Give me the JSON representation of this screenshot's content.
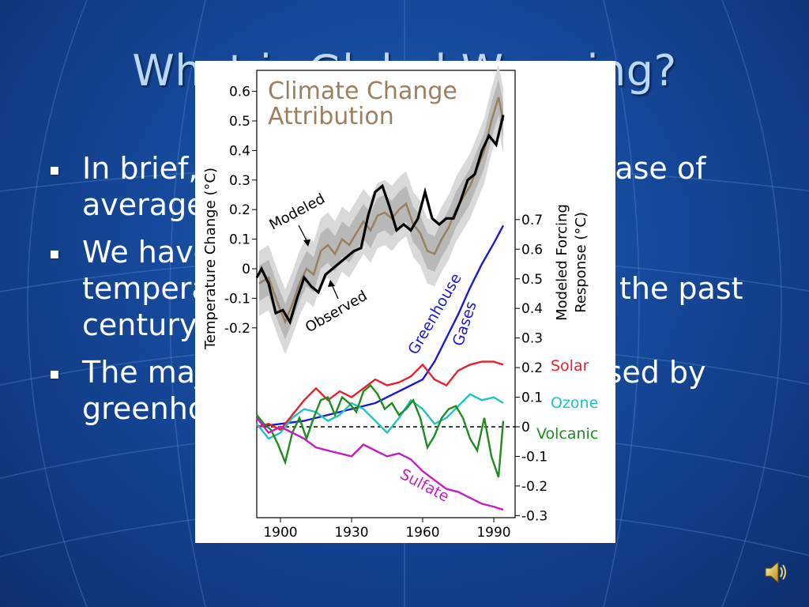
{
  "slide": {
    "title": "What is Global Warming?",
    "bullets": [
      {
        "text": "In brief, global warming is the increase of average global temperatures"
      },
      {
        "text": "We have observed an increase in temperatures of around 0.6°C over the past century"
      },
      {
        "text": "The majority of the warming is caused by greenhouse gas emissions"
      }
    ]
  },
  "icons": {
    "speaker": "speaker-icon",
    "bullet": "square-bullet-icon"
  },
  "colors": {
    "background": "#16489a",
    "title": "#b9d8f6",
    "modeled": "#9c7f5e",
    "observed": "#000000",
    "greenhouse": "#1a1ad6",
    "solar": "#e8202a",
    "ozone": "#22c2c2",
    "volcanic": "#1e8c1e",
    "sulfate": "#c21ec2"
  },
  "chart_data": {
    "type": "line",
    "title": "Climate Change Attribution",
    "xlabel": "",
    "ylabel_left": "Temperature Change (°C)",
    "ylabel_right": "Modeled Forcing Response (°C)",
    "xlim": [
      1890,
      1999
    ],
    "x_ticks": [
      "1900",
      "1930",
      "1960",
      "1990"
    ],
    "left_ticks": [
      "0.6",
      "0.5",
      "0.4",
      "0.3",
      "0.2",
      "0.1",
      "0",
      "-0.1",
      "-0.2"
    ],
    "right_ticks": [
      "0.7",
      "0.6",
      "0.5",
      "0.4",
      "0.3",
      "0.2",
      "0.1",
      "0",
      "-0.1",
      "-0.2",
      "-0.3"
    ],
    "annotations": {
      "modeled": "Modeled",
      "observed": "Observed"
    },
    "top_series": [
      {
        "name": "Modeled",
        "x": [
          1891,
          1895,
          1899,
          1902,
          1905,
          1908,
          1911,
          1914,
          1917,
          1920,
          1923,
          1926,
          1929,
          1932,
          1935,
          1938,
          1941,
          1944,
          1947,
          1950,
          1953,
          1956,
          1959,
          1962,
          1965,
          1968,
          1971,
          1974,
          1977,
          1980,
          1983,
          1986,
          1989,
          1992,
          1994
        ],
        "y": [
          -0.05,
          -0.03,
          -0.12,
          -0.18,
          -0.12,
          -0.05,
          0.0,
          -0.02,
          0.06,
          0.08,
          0.05,
          0.1,
          0.08,
          0.12,
          0.16,
          0.13,
          0.18,
          0.19,
          0.17,
          0.2,
          0.22,
          0.15,
          0.12,
          0.06,
          0.05,
          0.1,
          0.14,
          0.2,
          0.24,
          0.28,
          0.34,
          0.4,
          0.5,
          0.58,
          0.5
        ]
      },
      {
        "name": "Observed",
        "x": [
          1890,
          1892,
          1895,
          1898,
          1901,
          1904,
          1907,
          1910,
          1913,
          1916,
          1919,
          1922,
          1925,
          1928,
          1931,
          1934,
          1937,
          1940,
          1943,
          1946,
          1949,
          1952,
          1955,
          1958,
          1961,
          1964,
          1967,
          1970,
          1973,
          1976,
          1979,
          1982,
          1985,
          1988,
          1991,
          1994
        ],
        "y": [
          -0.03,
          0.0,
          -0.05,
          -0.15,
          -0.14,
          -0.18,
          -0.1,
          -0.03,
          -0.06,
          -0.08,
          -0.02,
          0.0,
          0.02,
          0.04,
          0.06,
          0.07,
          0.18,
          0.26,
          0.28,
          0.21,
          0.13,
          0.15,
          0.13,
          0.17,
          0.26,
          0.17,
          0.15,
          0.17,
          0.17,
          0.23,
          0.3,
          0.32,
          0.4,
          0.45,
          0.42,
          0.52
        ]
      }
    ],
    "bottom_series": [
      {
        "name": "Greenhouse Gases",
        "x": [
          1890,
          1900,
          1910,
          1920,
          1930,
          1940,
          1950,
          1960,
          1965,
          1970,
          1975,
          1980,
          1985,
          1990,
          1994
        ],
        "y": [
          0.0,
          0.01,
          0.02,
          0.04,
          0.06,
          0.08,
          0.12,
          0.16,
          0.22,
          0.3,
          0.38,
          0.47,
          0.55,
          0.62,
          0.68
        ]
      },
      {
        "name": "Solar",
        "x": [
          1890,
          1895,
          1900,
          1905,
          1910,
          1915,
          1920,
          1925,
          1930,
          1935,
          1940,
          1945,
          1950,
          1955,
          1960,
          1965,
          1970,
          1975,
          1980,
          1985,
          1990,
          1994
        ],
        "y": [
          0.0,
          0.01,
          -0.01,
          0.04,
          0.09,
          0.13,
          0.09,
          0.12,
          0.1,
          0.13,
          0.16,
          0.14,
          0.15,
          0.17,
          0.21,
          0.16,
          0.14,
          0.19,
          0.21,
          0.22,
          0.22,
          0.21
        ]
      },
      {
        "name": "Ozone",
        "x": [
          1890,
          1895,
          1900,
          1905,
          1910,
          1915,
          1920,
          1925,
          1930,
          1935,
          1940,
          1945,
          1950,
          1955,
          1960,
          1965,
          1970,
          1975,
          1980,
          1985,
          1990,
          1994
        ],
        "y": [
          0.01,
          -0.04,
          -0.02,
          0.03,
          0.06,
          0.05,
          0.02,
          0.04,
          0.08,
          0.06,
          0.02,
          -0.02,
          0.03,
          0.09,
          0.06,
          0.01,
          0.03,
          0.07,
          0.11,
          0.09,
          0.1,
          0.08
        ]
      },
      {
        "name": "Volcanic",
        "x": [
          1890,
          1893,
          1896,
          1899,
          1902,
          1905,
          1908,
          1911,
          1914,
          1917,
          1920,
          1923,
          1926,
          1929,
          1932,
          1935,
          1938,
          1941,
          1944,
          1947,
          1950,
          1953,
          1956,
          1959,
          1962,
          1965,
          1968,
          1971,
          1974,
          1977,
          1980,
          1983,
          1986,
          1989,
          1992,
          1994
        ],
        "y": [
          0.04,
          0.01,
          -0.01,
          -0.06,
          -0.12,
          -0.02,
          0.03,
          -0.04,
          0.03,
          0.09,
          0.1,
          0.04,
          0.1,
          0.08,
          0.05,
          0.12,
          0.14,
          0.11,
          0.06,
          0.08,
          0.04,
          0.06,
          0.09,
          0.03,
          -0.07,
          -0.03,
          0.03,
          0.06,
          0.07,
          0.03,
          -0.04,
          -0.08,
          0.03,
          -0.1,
          -0.17,
          0.02
        ]
      },
      {
        "name": "Sulfate",
        "x": [
          1890,
          1895,
          1900,
          1905,
          1910,
          1915,
          1920,
          1925,
          1930,
          1935,
          1940,
          1945,
          1950,
          1955,
          1960,
          1965,
          1970,
          1975,
          1980,
          1985,
          1990,
          1994
        ],
        "y": [
          0.03,
          -0.02,
          0.0,
          -0.02,
          -0.04,
          -0.07,
          -0.08,
          -0.09,
          -0.1,
          -0.06,
          -0.08,
          -0.1,
          -0.09,
          -0.11,
          -0.15,
          -0.18,
          -0.21,
          -0.22,
          -0.24,
          -0.26,
          -0.27,
          -0.28
        ]
      }
    ],
    "zero_line": {
      "style": "dashed"
    },
    "series_labels": {
      "greenhouse": [
        "Greenhouse",
        "Gases"
      ],
      "solar": "Solar",
      "ozone": "Ozone",
      "volcanic": "Volcanic",
      "sulfate": "Sulfate"
    }
  }
}
